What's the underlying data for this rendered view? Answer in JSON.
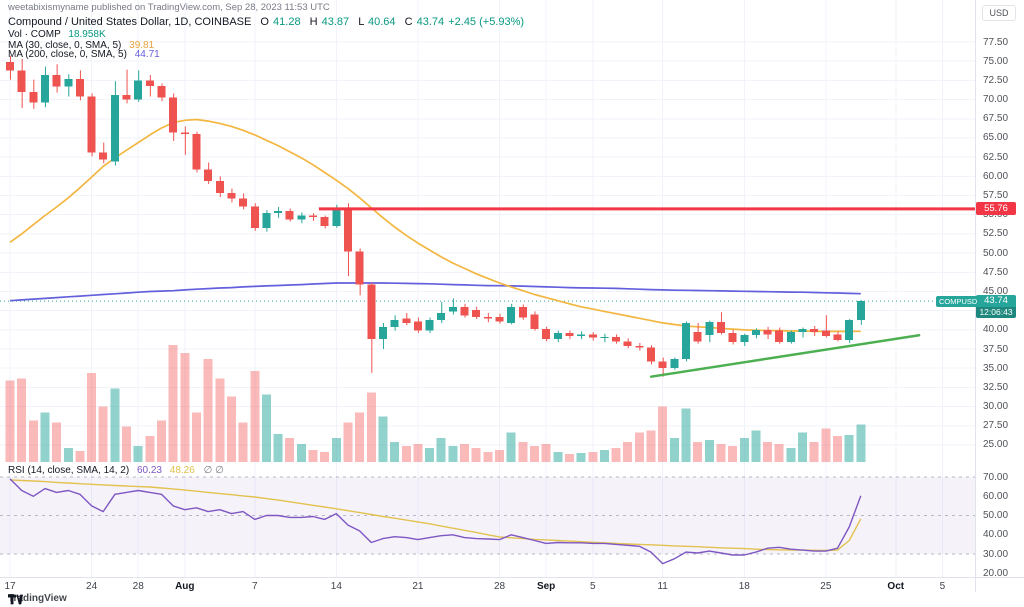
{
  "header": {
    "publisher_line": "weetabixismyname published on TradingView.com, Sep 28, 2023 11:53 UTC",
    "symbol_line": {
      "title": "Compound / United States Dollar, 1D, COINBASE",
      "o_label": "O",
      "o_value": "41.28",
      "h_label": "H",
      "h_value": "43.87",
      "l_label": "L",
      "l_value": "40.64",
      "c_label": "C",
      "c_value": "43.74",
      "change": "+2.45 (+5.93%)"
    },
    "vol_line": {
      "label": "Vol · COMP",
      "value": "18.958K"
    },
    "ma30_line": {
      "label": "MA (30, close, 0, SMA, 5)",
      "value": "39.81"
    },
    "ma200_line": {
      "label": "MA (200, close, 0, SMA, 5)",
      "value": "44.71"
    }
  },
  "rsi_header": {
    "label": "RSI (14, close, SMA, 14, 2)",
    "value": "60.23",
    "ma_value": "48.26",
    "hidden_values": "∅ ∅"
  },
  "labels": {
    "level_tag": "55.76",
    "price_tag": "43.74",
    "countdown": "12:06:43",
    "symbol_tag": "COMPUSD"
  },
  "axis": {
    "currency": "USD"
  },
  "logo": {
    "text": "TradingView"
  },
  "colors": {
    "up": "#26a69a",
    "down": "#ef5350",
    "vol_up": "rgba(38,166,154,0.5)",
    "vol_down": "rgba(239,83,80,0.4)",
    "ma30": "#e8a33d",
    "ma200": "#645fdc",
    "rsi": "#7e57c2",
    "rsi_ma": "#e3c24f",
    "level": "#f23645",
    "trend": "#4caf50",
    "teal_text": "#089981",
    "grid": "#f0f3fa",
    "axis_border": "#e0e3eb",
    "band_fill": "rgba(126,87,194,0.08)",
    "band_dash": "#b7bac4"
  },
  "chart_data": {
    "type": "candlestick",
    "title": "Compound / United States Dollar, 1D, COINBASE",
    "symbol": "COMPUSD",
    "interval": "1D",
    "price_range": [
      25.0,
      77.5
    ],
    "rsi_range": [
      20,
      73
    ],
    "legend_note": "panes: price+volume+MA30+MA200 (top), RSI14+RSI-MA (bottom)",
    "candles_format": [
      "date",
      "open",
      "high",
      "low",
      "close",
      "volume_K"
    ],
    "candles": [
      [
        "2023-07-17",
        74.9,
        75.7,
        72.6,
        73.8,
        41
      ],
      [
        "2023-07-18",
        73.8,
        75.3,
        68.9,
        71.0,
        42
      ],
      [
        "2023-07-19",
        71.0,
        72.6,
        68.8,
        69.6,
        21
      ],
      [
        "2023-07-20",
        69.6,
        74.3,
        69.0,
        73.2,
        25
      ],
      [
        "2023-07-21",
        73.2,
        74.6,
        70.9,
        71.7,
        20
      ],
      [
        "2023-07-22",
        71.7,
        73.3,
        70.4,
        72.7,
        7
      ],
      [
        "2023-07-23",
        72.7,
        73.8,
        69.9,
        70.4,
        5.5
      ],
      [
        "2023-07-24",
        70.4,
        70.8,
        62.6,
        63.1,
        45
      ],
      [
        "2023-07-25",
        63.1,
        64.4,
        61.7,
        62.2,
        28
      ],
      [
        "2023-07-26",
        61.9,
        72.4,
        61.4,
        70.6,
        37
      ],
      [
        "2023-07-27",
        70.6,
        73.9,
        69.5,
        70.0,
        18
      ],
      [
        "2023-07-28",
        70.0,
        73.8,
        69.7,
        72.5,
        8
      ],
      [
        "2023-07-29",
        72.5,
        73.2,
        70.4,
        71.8,
        13
      ],
      [
        "2023-07-30",
        71.8,
        72.1,
        69.8,
        70.3,
        21
      ],
      [
        "2023-07-31",
        70.3,
        70.8,
        64.6,
        65.7,
        59
      ],
      [
        "2023-08-01",
        65.7,
        66.5,
        62.8,
        65.5,
        55
      ],
      [
        "2023-08-02",
        65.5,
        65.8,
        60.5,
        60.9,
        25
      ],
      [
        "2023-08-03",
        60.9,
        61.8,
        59.0,
        59.4,
        52
      ],
      [
        "2023-08-04",
        59.4,
        60.0,
        57.3,
        57.8,
        42
      ],
      [
        "2023-08-05",
        57.8,
        58.4,
        56.6,
        57.1,
        33
      ],
      [
        "2023-08-06",
        57.1,
        57.8,
        55.7,
        56.1,
        20
      ],
      [
        "2023-08-07",
        56.1,
        56.5,
        52.9,
        53.3,
        46
      ],
      [
        "2023-08-08",
        53.3,
        55.6,
        52.8,
        55.2,
        34
      ],
      [
        "2023-08-09",
        55.2,
        56.0,
        54.6,
        55.5,
        14
      ],
      [
        "2023-08-10",
        55.5,
        55.8,
        54.1,
        54.4,
        12
      ],
      [
        "2023-08-11",
        54.4,
        55.3,
        53.9,
        54.9,
        9
      ],
      [
        "2023-08-12",
        54.9,
        55.2,
        54.2,
        54.7,
        6
      ],
      [
        "2023-08-13",
        54.7,
        54.9,
        53.2,
        53.5,
        5
      ],
      [
        "2023-08-14",
        53.5,
        56.3,
        53.3,
        55.6,
        12
      ],
      [
        "2023-08-15",
        55.6,
        56.5,
        47.0,
        50.2,
        20
      ],
      [
        "2023-08-16",
        50.2,
        50.6,
        44.5,
        45.9,
        25
      ],
      [
        "2023-08-17",
        45.9,
        46.2,
        34.4,
        38.8,
        35
      ],
      [
        "2023-08-18",
        38.8,
        40.9,
        37.5,
        40.4,
        23
      ],
      [
        "2023-08-19",
        40.4,
        41.9,
        39.9,
        41.3,
        10
      ],
      [
        "2023-08-20",
        41.5,
        42.2,
        40.6,
        40.9,
        8
      ],
      [
        "2023-08-21",
        41.1,
        41.6,
        39.6,
        39.9,
        9
      ],
      [
        "2023-08-22",
        39.9,
        41.6,
        39.6,
        41.3,
        7
      ],
      [
        "2023-08-23",
        41.3,
        43.6,
        40.9,
        42.2,
        12
      ],
      [
        "2023-08-24",
        42.4,
        44.1,
        42.0,
        43.0,
        8
      ],
      [
        "2023-08-25",
        43.0,
        43.4,
        41.6,
        41.9,
        9
      ],
      [
        "2023-08-26",
        42.6,
        43.0,
        41.4,
        41.7,
        7
      ],
      [
        "2023-08-27",
        41.7,
        42.2,
        41.0,
        41.5,
        5
      ],
      [
        "2023-08-28",
        41.7,
        42.1,
        40.8,
        41.1,
        6
      ],
      [
        "2023-08-29",
        40.9,
        43.4,
        40.7,
        43.0,
        15
      ],
      [
        "2023-08-30",
        43.0,
        43.3,
        41.3,
        41.6,
        10
      ],
      [
        "2023-08-31",
        42.0,
        42.4,
        39.9,
        40.1,
        8
      ],
      [
        "2023-09-01",
        40.1,
        40.4,
        38.5,
        38.8,
        9
      ],
      [
        "2023-09-02",
        38.8,
        39.9,
        38.4,
        39.6,
        5
      ],
      [
        "2023-09-03",
        39.6,
        39.9,
        38.8,
        39.2,
        4
      ],
      [
        "2023-09-04",
        39.2,
        39.8,
        38.8,
        39.4,
        4.5
      ],
      [
        "2023-09-05",
        39.4,
        39.7,
        38.6,
        39.0,
        5
      ],
      [
        "2023-09-06",
        39.0,
        39.5,
        38.4,
        39.1,
        6
      ],
      [
        "2023-09-07",
        39.1,
        39.4,
        38.2,
        38.5,
        7
      ],
      [
        "2023-09-08",
        38.5,
        38.9,
        37.6,
        37.9,
        10
      ],
      [
        "2023-09-09",
        37.9,
        38.3,
        37.3,
        37.7,
        15
      ],
      [
        "2023-09-10",
        37.7,
        38.0,
        35.5,
        35.9,
        16
      ],
      [
        "2023-09-11",
        35.9,
        36.4,
        33.9,
        35.0,
        28
      ],
      [
        "2023-09-12",
        35.0,
        36.4,
        34.8,
        36.2,
        12
      ],
      [
        "2023-09-13",
        36.2,
        41.1,
        35.9,
        40.9,
        27
      ],
      [
        "2023-09-14",
        39.7,
        40.9,
        38.2,
        38.5,
        10
      ],
      [
        "2023-09-15",
        39.3,
        41.2,
        38.4,
        41.0,
        11
      ],
      [
        "2023-09-16",
        41.0,
        42.3,
        39.4,
        39.6,
        9
      ],
      [
        "2023-09-17",
        39.6,
        40.0,
        38.1,
        38.4,
        8
      ],
      [
        "2023-09-18",
        38.4,
        39.5,
        37.9,
        39.3,
        12
      ],
      [
        "2023-09-19",
        39.3,
        40.2,
        38.9,
        40.0,
        16
      ],
      [
        "2023-09-20",
        40.0,
        40.4,
        38.8,
        39.4,
        10
      ],
      [
        "2023-09-21",
        39.9,
        40.3,
        38.2,
        38.4,
        9
      ],
      [
        "2023-09-22",
        38.4,
        39.9,
        38.2,
        39.7,
        7
      ],
      [
        "2023-09-23",
        39.7,
        40.3,
        39.0,
        40.1,
        15
      ],
      [
        "2023-09-24",
        40.1,
        40.5,
        39.2,
        39.7,
        10
      ],
      [
        "2023-09-25",
        39.9,
        41.9,
        39.0,
        39.2,
        17
      ],
      [
        "2023-09-26",
        39.4,
        39.8,
        38.5,
        38.7,
        13
      ],
      [
        "2023-09-27",
        38.7,
        41.4,
        38.3,
        41.29,
        13.5
      ],
      [
        "2023-09-28",
        41.28,
        43.87,
        40.64,
        43.74,
        18.958
      ]
    ],
    "ma30": [
      51.4,
      52.5,
      53.7,
      54.9,
      56.0,
      57.2,
      58.5,
      59.9,
      61.3,
      62.4,
      63.4,
      64.4,
      65.4,
      66.3,
      67.0,
      67.3,
      67.4,
      67.2,
      66.9,
      66.5,
      66.0,
      65.4,
      64.7,
      64.0,
      63.2,
      62.4,
      61.5,
      60.5,
      59.5,
      58.4,
      57.2,
      55.9,
      54.6,
      53.4,
      52.3,
      51.3,
      50.4,
      49.5,
      48.7,
      48.0,
      47.3,
      46.7,
      46.1,
      45.6,
      45.1,
      44.6,
      44.2,
      43.8,
      43.4,
      43.0,
      42.7,
      42.4,
      42.1,
      41.8,
      41.5,
      41.2,
      40.9,
      40.7,
      40.5,
      40.4,
      40.3,
      40.2,
      40.1,
      40.0,
      39.95,
      39.9,
      39.9,
      39.85,
      39.85,
      39.8,
      39.8,
      39.8,
      39.8,
      39.81
    ],
    "ma200": [
      43.8,
      43.9,
      44.0,
      44.1,
      44.2,
      44.3,
      44.4,
      44.5,
      44.6,
      44.7,
      44.8,
      44.9,
      45.0,
      45.05,
      45.1,
      45.2,
      45.3,
      45.38,
      45.45,
      45.5,
      45.6,
      45.66,
      45.72,
      45.78,
      45.84,
      45.9,
      45.97,
      46.04,
      46.1,
      46.1,
      46.1,
      46.1,
      46.1,
      46.08,
      46.05,
      46.02,
      46.0,
      45.95,
      45.9,
      45.85,
      45.8,
      45.77,
      45.75,
      45.72,
      45.7,
      45.65,
      45.6,
      45.55,
      45.5,
      45.47,
      45.45,
      45.42,
      45.4,
      45.35,
      45.3,
      45.25,
      45.2,
      45.17,
      45.15,
      45.12,
      45.1,
      45.07,
      45.05,
      45.02,
      45.0,
      44.97,
      44.95,
      44.92,
      44.9,
      44.87,
      44.83,
      44.8,
      44.75,
      44.71
    ],
    "rsi": [
      69,
      63,
      60,
      64,
      62,
      63,
      61,
      55,
      52,
      61,
      62,
      63,
      62,
      61,
      55,
      53,
      54,
      52,
      53,
      51,
      52,
      48,
      50,
      50,
      49,
      49,
      49.5,
      48,
      51,
      45,
      42,
      36,
      38,
      39,
      38.5,
      37.5,
      38.5,
      39.5,
      40,
      38.5,
      38,
      37.8,
      37.5,
      40,
      38.5,
      37,
      35.5,
      36,
      35.8,
      35.8,
      35.5,
      35.5,
      35,
      34.5,
      34,
      31,
      25,
      27.5,
      31,
      30.5,
      31.5,
      30.5,
      29.5,
      29.5,
      31,
      33,
      33.5,
      32.5,
      32,
      31.5,
      31.5,
      33,
      44,
      60.23
    ],
    "rsi_ma": [
      68.5,
      68.2,
      67.9,
      67.6,
      67.2,
      66.9,
      66.5,
      66.2,
      65.9,
      65.6,
      65.3,
      65.0,
      64.8,
      64.3,
      63.8,
      63.2,
      62.6,
      62.0,
      61.4,
      60.8,
      60.2,
      59.6,
      58.8,
      58.0,
      57.1,
      56.2,
      55.3,
      54.4,
      53.5,
      52.5,
      51.5,
      50.5,
      49.5,
      48.6,
      47.6,
      46.7,
      45.7,
      44.5,
      43.4,
      42.3,
      41.2,
      40.0,
      38.9,
      38.4,
      38.0,
      37.6,
      37.3,
      37.0,
      36.7,
      36.4,
      36.1,
      35.8,
      35.5,
      35.2,
      35.0,
      34.8,
      34.5,
      34.2,
      34.0,
      33.8,
      33.5,
      33.2,
      33.0,
      32.8,
      32.5,
      32.3,
      32.2,
      32.1,
      32.0,
      31.9,
      31.8,
      32.0,
      37.0,
      48.26
    ],
    "rsi_bands": [
      70,
      50,
      30
    ],
    "level_line": {
      "value": 55.76,
      "start_index": 26.5
    },
    "current_price_line": 43.74,
    "trendline": {
      "from": {
        "index": 55,
        "price": 33.9
      },
      "to": {
        "index": 78,
        "price": 39.3
      }
    },
    "price_ticks": [
      "77.50",
      "75.00",
      "72.50",
      "70.00",
      "67.50",
      "65.00",
      "62.50",
      "60.00",
      "57.50",
      "55.00",
      "52.50",
      "50.00",
      "47.50",
      "45.00",
      "40.00",
      "37.50",
      "35.00",
      "32.50",
      "30.00",
      "27.50",
      "25.00"
    ],
    "rsi_ticks": [
      "70.00",
      "60.00",
      "50.00",
      "40.00",
      "30.00",
      "20.00"
    ],
    "time_ticks": [
      {
        "label": "17",
        "index": 0
      },
      {
        "label": "24",
        "index": 7
      },
      {
        "label": "28",
        "index": 11
      },
      {
        "label": "Aug",
        "index": 15,
        "bold": true
      },
      {
        "label": "7",
        "index": 21
      },
      {
        "label": "14",
        "index": 28
      },
      {
        "label": "21",
        "index": 35
      },
      {
        "label": "28",
        "index": 42
      },
      {
        "label": "Sep",
        "index": 46,
        "bold": true
      },
      {
        "label": "5",
        "index": 50
      },
      {
        "label": "11",
        "index": 56
      },
      {
        "label": "18",
        "index": 63
      },
      {
        "label": "25",
        "index": 70
      },
      {
        "label": "Oct",
        "index": 76,
        "bold": true
      },
      {
        "label": "5",
        "index": 80
      }
    ]
  }
}
